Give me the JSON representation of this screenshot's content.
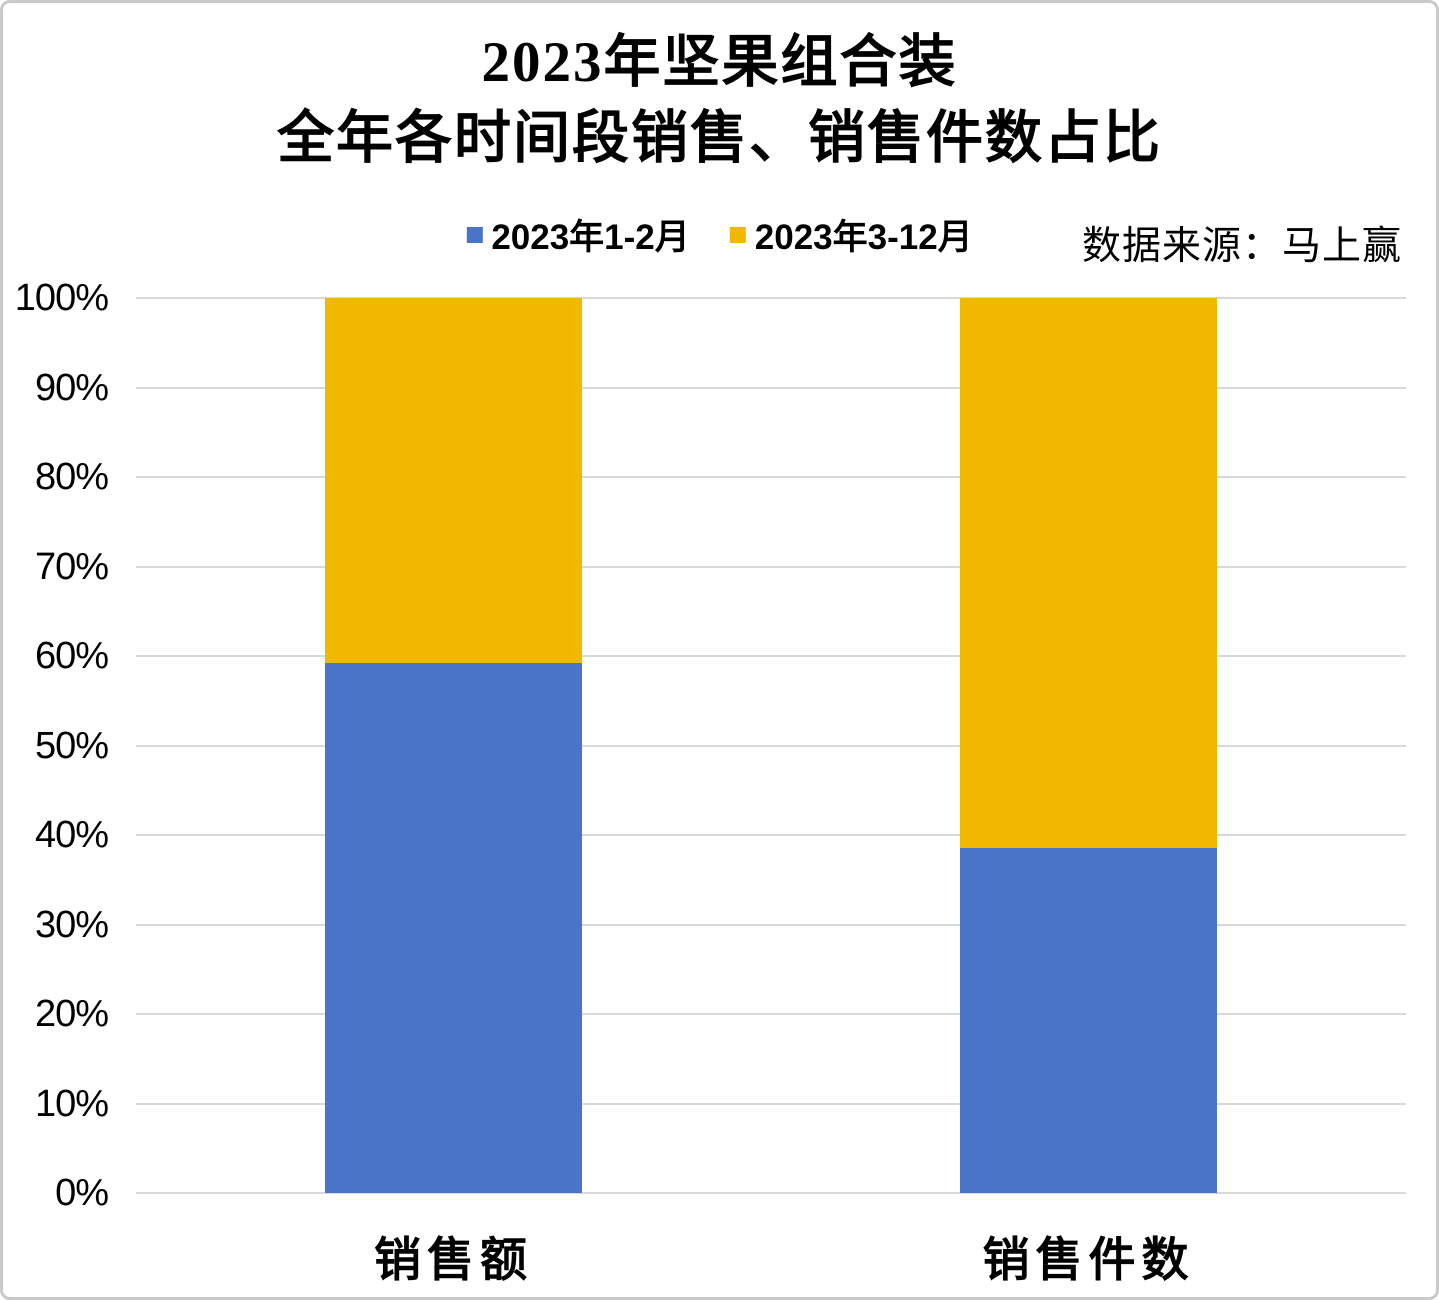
{
  "title": {
    "line1": "2023年坚果组合装",
    "line2": "全年各时间段销售、销售件数占比"
  },
  "source_note": "数据来源：马上赢",
  "chart_data": {
    "type": "bar",
    "stacked": true,
    "percent_stacked": true,
    "title": "2023年坚果组合装 全年各时间段销售、销售件数占比",
    "categories": [
      "销售额",
      "销售件数"
    ],
    "series": [
      {
        "name": "2023年1-2月",
        "color": "#4A74C8",
        "values": [
          59.2,
          38.5
        ]
      },
      {
        "name": "2023年3-12月",
        "color": "#F1B800",
        "values": [
          40.8,
          61.5
        ]
      }
    ],
    "y_ticks": [
      "0%",
      "10%",
      "20%",
      "30%",
      "40%",
      "50%",
      "60%",
      "70%",
      "80%",
      "90%",
      "100%"
    ],
    "ylim": [
      0,
      100
    ],
    "grid": true,
    "legend_position": "top-center",
    "source": "数据来源：马上赢"
  },
  "colors": {
    "series_1": "#4A74C8",
    "series_2": "#F1B800",
    "gridline": "#D9D9D9",
    "frame_border": "#C9C9C9",
    "background": "#FFFFFF",
    "text": "#000000"
  }
}
